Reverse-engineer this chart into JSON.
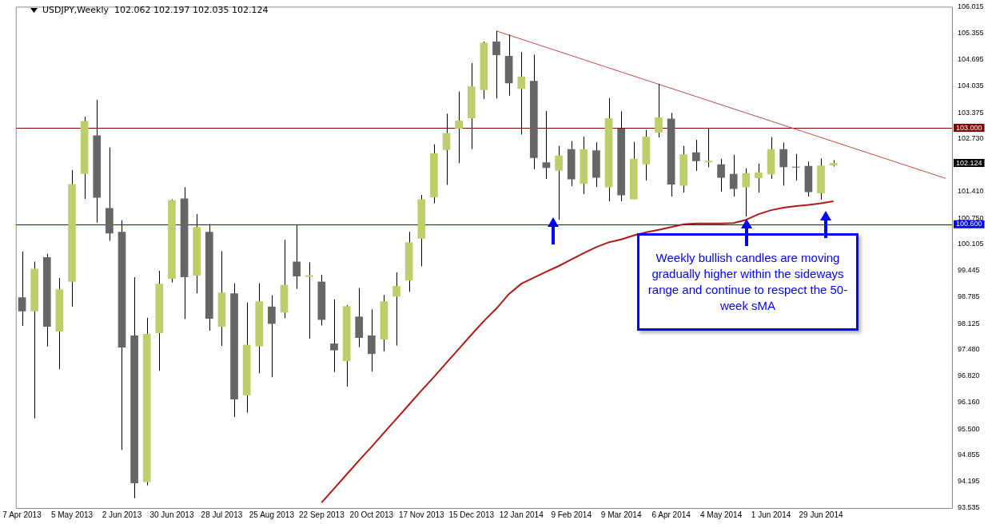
{
  "chart_data": {
    "type": "candlestick",
    "title": "USDJPY,Weekly",
    "subtitle": "102.062 102.197 102.035 102.124",
    "categories": [
      "7 Apr 2013",
      null,
      null,
      null,
      "5 May 2013",
      null,
      null,
      null,
      "2 Jun 2013",
      null,
      null,
      null,
      "30 Jun 2013",
      null,
      null,
      null,
      "28 Jul 2013",
      null,
      null,
      null,
      "25 Aug 2013",
      null,
      null,
      null,
      "22 Sep 2013",
      null,
      null,
      null,
      "20 Oct 2013",
      null,
      null,
      null,
      "17 Nov 2013",
      null,
      null,
      null,
      "15 Dec 2013",
      null,
      null,
      null,
      "12 Jan 2014",
      null,
      null,
      null,
      "9 Feb 2014",
      null,
      null,
      null,
      "9 Mar 2014",
      null,
      null,
      null,
      "6 Apr 2014",
      null,
      null,
      null,
      "4 May 2014",
      null,
      null,
      null,
      "1 Jun 2014",
      null,
      null,
      null,
      "29 Jun 2014",
      null,
      null,
      null,
      null,
      null,
      null,
      null,
      null,
      null,
      null
    ],
    "ohlc": [
      [
        98.78,
        99.92,
        98.07,
        98.43
      ],
      [
        98.43,
        99.67,
        95.77,
        99.49
      ],
      [
        99.78,
        99.86,
        97.56,
        98.05
      ],
      [
        97.93,
        99.26,
        96.99,
        98.98
      ],
      [
        99.17,
        101.95,
        98.55,
        101.6
      ],
      [
        101.85,
        103.28,
        101.23,
        103.17
      ],
      [
        102.81,
        103.7,
        100.64,
        101.26
      ],
      [
        101.0,
        102.51,
        100.19,
        100.37
      ],
      [
        100.41,
        100.7,
        94.98,
        97.53
      ],
      [
        97.83,
        99.28,
        93.78,
        94.15
      ],
      [
        94.18,
        98.27,
        94.1,
        97.87
      ],
      [
        97.89,
        99.44,
        96.95,
        99.12
      ],
      [
        99.24,
        101.22,
        99.15,
        101.2
      ],
      [
        101.24,
        101.52,
        98.24,
        99.28
      ],
      [
        99.32,
        100.85,
        98.88,
        100.53
      ],
      [
        100.41,
        100.61,
        97.95,
        98.25
      ],
      [
        98.05,
        99.93,
        97.57,
        98.9
      ],
      [
        98.88,
        99.13,
        95.8,
        96.24
      ],
      [
        96.34,
        98.65,
        95.91,
        97.6
      ],
      [
        97.56,
        99.13,
        96.89,
        98.68
      ],
      [
        98.55,
        98.83,
        96.79,
        98.12
      ],
      [
        98.4,
        100.21,
        98.26,
        99.09
      ],
      [
        99.67,
        100.59,
        98.99,
        99.3
      ],
      [
        99.29,
        99.65,
        97.75,
        99.33
      ],
      [
        99.17,
        99.34,
        98.08,
        98.22
      ],
      [
        97.63,
        98.73,
        96.92,
        97.46
      ],
      [
        97.19,
        98.59,
        96.56,
        98.56
      ],
      [
        98.3,
        99.01,
        97.54,
        97.77
      ],
      [
        97.83,
        98.48,
        96.93,
        97.37
      ],
      [
        97.73,
        98.84,
        97.43,
        98.68
      ],
      [
        98.8,
        99.4,
        97.58,
        99.06
      ],
      [
        99.2,
        100.41,
        98.92,
        100.15
      ],
      [
        100.24,
        101.33,
        99.55,
        101.22
      ],
      [
        101.27,
        102.59,
        101.12,
        102.37
      ],
      [
        102.45,
        103.35,
        101.58,
        102.87
      ],
      [
        102.98,
        103.9,
        102.12,
        103.18
      ],
      [
        103.24,
        104.61,
        102.47,
        104.03
      ],
      [
        103.94,
        105.15,
        103.72,
        105.12
      ],
      [
        105.15,
        105.41,
        103.73,
        104.81
      ],
      [
        104.79,
        105.32,
        103.8,
        104.11
      ],
      [
        103.97,
        104.89,
        102.83,
        104.28
      ],
      [
        104.17,
        104.82,
        101.97,
        102.25
      ],
      [
        102.14,
        103.42,
        101.73,
        102.0
      ],
      [
        101.93,
        102.55,
        100.71,
        102.31
      ],
      [
        102.47,
        102.67,
        101.55,
        101.72
      ],
      [
        101.61,
        102.78,
        101.35,
        102.47
      ],
      [
        102.44,
        102.64,
        101.53,
        101.76
      ],
      [
        101.52,
        103.74,
        101.17,
        103.24
      ],
      [
        102.98,
        103.41,
        101.17,
        101.32
      ],
      [
        101.22,
        102.65,
        101.22,
        102.23
      ],
      [
        102.09,
        102.95,
        101.69,
        102.78
      ],
      [
        102.88,
        104.09,
        102.76,
        103.26
      ],
      [
        103.23,
        103.37,
        101.29,
        101.59
      ],
      [
        101.56,
        102.55,
        101.39,
        102.34
      ],
      [
        102.39,
        102.7,
        101.93,
        102.17
      ],
      [
        102.14,
        102.98,
        102.02,
        102.18
      ],
      [
        102.09,
        102.23,
        101.41,
        101.76
      ],
      [
        101.85,
        102.33,
        101.29,
        101.48
      ],
      [
        101.52,
        101.99,
        100.79,
        101.87
      ],
      [
        101.75,
        102.11,
        101.39,
        101.89
      ],
      [
        101.84,
        102.77,
        101.73,
        102.47
      ],
      [
        102.47,
        102.63,
        101.56,
        102.02
      ],
      [
        102.02,
        102.35,
        101.69,
        102.01
      ],
      [
        102.05,
        102.16,
        101.29,
        101.4
      ],
      [
        101.37,
        102.24,
        101.21,
        102.06
      ],
      [
        102.062,
        102.197,
        102.035,
        102.124
      ],
      null,
      null,
      null,
      null,
      null,
      null,
      null,
      null,
      null
    ],
    "colors": [
      "#666666",
      "#bccf6a",
      "#666666",
      "#bccf6a",
      "#bccf6a",
      "#bccf6a",
      "#666666",
      "#666666",
      "#666666",
      "#666666",
      "#bccf6a",
      "#bccf6a",
      "#bccf6a",
      "#666666",
      "#bccf6a",
      "#666666",
      "#bccf6a",
      "#666666",
      "#bccf6a",
      "#bccf6a",
      "#666666",
      "#bccf6a",
      "#666666",
      "#bccf6a",
      "#666666",
      "#666666",
      "#bccf6a",
      "#666666",
      "#666666",
      "#bccf6a",
      "#bccf6a",
      "#bccf6a",
      "#bccf6a",
      "#bccf6a",
      "#bccf6a",
      "#bccf6a",
      "#bccf6a",
      "#bccf6a",
      "#666666",
      "#666666",
      "#bccf6a",
      "#666666",
      "#666666",
      "#bccf6a",
      "#666666",
      "#bccf6a",
      "#666666",
      "#bccf6a",
      "#666666",
      "#bccf6a",
      "#bccf6a",
      "#bccf6a",
      "#666666",
      "#bccf6a",
      "#666666",
      "#bccf6a",
      "#666666",
      "#666666",
      "#bccf6a",
      "#bccf6a",
      "#bccf6a",
      "#666666",
      "#666666",
      "#666666",
      "#bccf6a",
      "#bccf6a",
      null,
      null,
      null,
      null,
      null,
      null,
      null,
      null,
      null
    ],
    "series": [
      {
        "type": "line",
        "color": "#b01818",
        "values": [
          null,
          null,
          null,
          null,
          null,
          null,
          null,
          null,
          null,
          null,
          null,
          null,
          null,
          null,
          null,
          null,
          null,
          null,
          null,
          null,
          null,
          null,
          null,
          null,
          93.67,
          94.02,
          94.37,
          94.72,
          95.06,
          95.41,
          95.76,
          96.11,
          96.46,
          96.8,
          97.15,
          97.5,
          97.85,
          98.19,
          98.5,
          98.86,
          99.12,
          99.27,
          99.42,
          99.56,
          99.72,
          99.88,
          100.03,
          100.15,
          100.22,
          100.32,
          100.4,
          100.46,
          100.53,
          100.6,
          100.62,
          100.62,
          100.62,
          100.63,
          100.71,
          100.85,
          100.95,
          101.01,
          101.05,
          101.08,
          101.12,
          101.17,
          null,
          null,
          null,
          null,
          null,
          null,
          null,
          null,
          null
        ]
      },
      {
        "type": "line",
        "color": "#c04848",
        "values": [
          null,
          null,
          null,
          null,
          null,
          null,
          null,
          null,
          null,
          null,
          null,
          null,
          null,
          null,
          null,
          null,
          null,
          null,
          null,
          null,
          null,
          null,
          null,
          null,
          null,
          null,
          null,
          null,
          null,
          null,
          null,
          null,
          null,
          null,
          null,
          null,
          null,
          null,
          105.41,
          null,
          null,
          null,
          null,
          null,
          null,
          null,
          null,
          null,
          null,
          null,
          null,
          null,
          null,
          null,
          null,
          null,
          null,
          null,
          null,
          null,
          null,
          null,
          null,
          null,
          null,
          null,
          null,
          null,
          null,
          null,
          null,
          null,
          null,
          null,
          101.74
        ]
      }
    ],
    "ylim": [
      93.535,
      106.015
    ],
    "yticks": [
      {
        "value": 106.015,
        "label": "106.015"
      },
      {
        "value": 105.355,
        "label": "105.355"
      },
      {
        "value": 104.695,
        "label": "104.695"
      },
      {
        "value": 104.035,
        "label": "104.035"
      },
      {
        "value": 103.375,
        "label": "103.375"
      },
      {
        "value": 102.73,
        "label": "102.730"
      },
      {
        "value": 101.41,
        "label": "101.410"
      },
      {
        "value": 100.75,
        "label": "100.750"
      },
      {
        "value": 100.105,
        "label": "100.105"
      },
      {
        "value": 99.445,
        "label": "99.445"
      },
      {
        "value": 98.785,
        "label": "98.785"
      },
      {
        "value": 98.125,
        "label": "98.125"
      },
      {
        "value": 97.48,
        "label": "97.480"
      },
      {
        "value": 96.82,
        "label": "96.820"
      },
      {
        "value": 96.16,
        "label": "96.160"
      },
      {
        "value": 95.5,
        "label": "95.500"
      },
      {
        "value": 94.855,
        "label": "94.855"
      },
      {
        "value": 94.195,
        "label": "94.195"
      },
      {
        "value": 93.535,
        "label": "93.535"
      }
    ],
    "ref_lines": [
      {
        "axis": "y",
        "value": 103,
        "label": "103.000",
        "color": "#800000"
      },
      {
        "axis": "y",
        "value": 100.6,
        "label": "100.600",
        "color": "#0000ff"
      }
    ],
    "annotations": [
      "102.124",
      "Weekly bullish candles are moving gradually higher within the sideways range and continue to respect the 50-week sMA"
    ],
    "grid": false,
    "legend": false
  }
}
